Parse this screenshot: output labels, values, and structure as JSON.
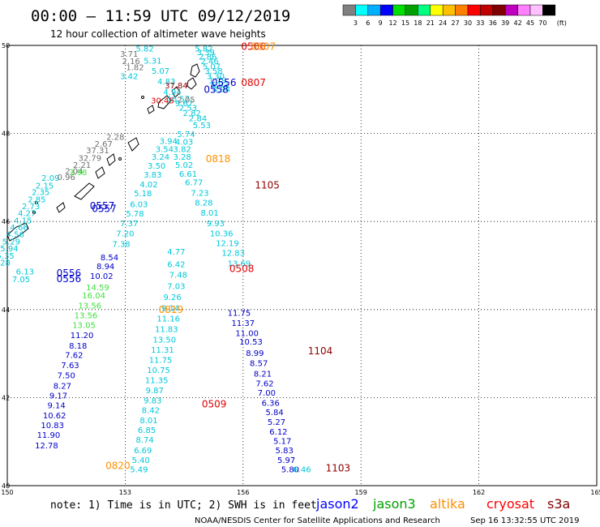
{
  "header": {
    "title": "00:00 – 11:59 UTC 09/12/2019",
    "subtitle": "12 hour collection of altimeter wave heights"
  },
  "legend": {
    "colors": [
      "#808080",
      "#00ffff",
      "#00b0ff",
      "#0000ff",
      "#00e000",
      "#00a000",
      "#00ff80",
      "#ffff00",
      "#ffc000",
      "#ff8000",
      "#ff0000",
      "#c00000",
      "#800000",
      "#c000c0",
      "#ff80ff",
      "#ffc0ff",
      "#000000"
    ],
    "labels": [
      "3",
      "6",
      "9",
      "12",
      "15",
      "18",
      "21",
      "24",
      "27",
      "30",
      "33",
      "36",
      "39",
      "42",
      "45",
      "70"
    ],
    "unit": "(ft)"
  },
  "axes": {
    "y_ticks": [
      "50",
      "48",
      "46",
      "44",
      "42",
      "40"
    ],
    "x_ticks": [
      "150",
      "153",
      "156",
      "159",
      "162",
      "165"
    ]
  },
  "footer": {
    "note": "note:  1) Time is in UTC;  2) SWH is in feet",
    "satellites": [
      {
        "name": "jason2",
        "color": "#0000ff"
      },
      {
        "name": "jason3",
        "color": "#00a000"
      },
      {
        "name": "altika",
        "color": "#ff9000"
      },
      {
        "name": "cryosat",
        "color": "#ff0000"
      },
      {
        "name": "s3a",
        "color": "#800000"
      }
    ],
    "credit": "NOAA/NESDIS Center for Satellite Applications and Research",
    "timestamp": "Sep 16 13:32:55 UTC 2019"
  },
  "colors": {
    "cyan": "#00c8d8",
    "blue": "#0000c8",
    "green": "#40e040",
    "gray": "#707070",
    "orange": "#ff9000",
    "red": "#e00000",
    "darkred": "#900000",
    "darkgreen": "#006000"
  },
  "tracks": {
    "t1_upper": {
      "lat": [
        49.86,
        49.59,
        49.36,
        49.12,
        48.88,
        48.72,
        48.62,
        48.52,
        48.4,
        48.28,
        48.12
      ],
      "lon": [
        153.5,
        153.7,
        153.9,
        154.05,
        154.2,
        154.35,
        154.5,
        154.6,
        154.7,
        154.85,
        154.95
      ],
      "color": "cyan",
      "values": [
        "5.82",
        "5.31",
        "5.07",
        "4.83",
        "4.94",
        "16.57",
        "9.67",
        "2.53",
        "2.82",
        "2.84",
        "5.53"
      ]
    },
    "t1_upper_b": {
      "lat": [
        49.86,
        49.78,
        49.68,
        49.58,
        49.46,
        49.36,
        49.24,
        49.14,
        49.04,
        48.94
      ],
      "lon": [
        155.0,
        155.05,
        155.1,
        155.15,
        155.2,
        155.25,
        155.3,
        155.35,
        155.4,
        155.45
      ],
      "color": "cyan",
      "values": [
        "5.82",
        "3.39",
        "2.86",
        "2.46",
        "5.07",
        "3.58",
        "3.30",
        "1.79",
        "6.92",
        "4.94"
      ]
    },
    "t1_upper_gray": {
      "lat": [
        49.74,
        49.58,
        49.44
      ],
      "lon": [
        153.1,
        153.15,
        153.25
      ],
      "color": "gray",
      "values": [
        "3.71",
        "2.16",
        "1.82"
      ]
    },
    "t1_mid": {
      "lat": [
        47.92,
        47.74,
        47.58,
        47.4,
        47.22,
        47.02,
        46.82,
        46.58,
        46.36,
        46.13,
        45.89,
        45.66,
        45.44,
        45.22,
        44.98
      ],
      "lon": [
        154.55,
        154.5,
        154.45,
        154.45,
        154.5,
        154.6,
        154.75,
        154.9,
        155.0,
        155.15,
        155.3,
        155.45,
        155.6,
        155.75,
        155.9
      ],
      "color": "cyan",
      "values": [
        "5.74",
        "4.03",
        "3.82",
        "3.28",
        "5.02",
        "6.61",
        "6.77",
        "7.23",
        "8.28",
        "8.01",
        "9.93",
        "10.36",
        "12.19",
        "12.83",
        "13.69"
      ]
    },
    "t1_lower": {
      "lat": [
        43.86,
        43.63,
        43.4,
        43.2,
        42.95,
        42.72,
        42.48,
        42.26,
        42.04,
        41.81,
        41.6,
        41.38,
        41.16,
        40.95,
        40.74,
        40.52,
        40.3
      ],
      "lon": [
        155.9,
        156.0,
        156.1,
        156.2,
        156.3,
        156.4,
        156.5,
        156.55,
        156.6,
        156.7,
        156.8,
        156.85,
        156.9,
        157.0,
        157.05,
        157.1,
        157.2
      ],
      "color": "blue",
      "values": [
        "11.75",
        "11.37",
        "11.00",
        "10.53",
        "8.99",
        "8.57",
        "8.21",
        "7.62",
        "7.00",
        "6.36",
        "5.84",
        "5.27",
        "6.12",
        "5.17",
        "5.83",
        "5.97",
        "5.80"
      ]
    },
    "t2_a": {
      "lat": [
        47.76,
        47.58,
        47.4,
        47.2,
        47.0,
        46.78,
        46.57,
        46.33,
        46.11,
        45.89,
        45.66,
        45.42
      ],
      "lon": [
        154.1,
        154.0,
        153.9,
        153.8,
        153.7,
        153.6,
        153.45,
        153.35,
        153.25,
        153.1,
        153.0,
        152.9
      ],
      "color": "cyan",
      "values": [
        "3.94",
        "3.54",
        "3.24",
        "3.50",
        "3.83",
        "4.02",
        "5.18",
        "6.03",
        "5.78",
        "7.37",
        "7.20",
        "7.38"
      ]
    },
    "t2_b": {
      "lat": [
        45.12,
        44.92,
        44.7,
        44.44,
        44.25,
        44.02,
        43.8,
        43.58,
        43.35,
        43.11,
        42.9,
        42.67,
        42.44,
        42.2,
        41.98,
        41.76,
        41.53,
        41.31,
        41.09,
        40.85,
        40.64,
        40.42
      ],
      "lon": [
        152.6,
        152.5,
        152.4,
        152.3,
        152.2,
        152.1,
        152.0,
        151.95,
        151.9,
        151.8,
        151.7,
        151.6,
        151.5,
        151.4,
        151.3,
        151.25,
        151.2,
        151.15,
        151.05,
        151.0,
        150.95,
        150.9
      ],
      "color": "blue",
      "values": [
        "8.54",
        "8.94",
        "10.02",
        "14.59",
        "16.04",
        "13.56",
        "13.56",
        "13.05",
        "11.20",
        "8.18",
        "7.62",
        "7.63",
        "7.50",
        "8.27",
        "9.17",
        "9.14",
        "10.62",
        "10.83",
        "11.90",
        "12.78",
        "",
        ""
      ]
    },
    "t3": {
      "lat": [
        45.25,
        44.96,
        44.72,
        44.47,
        44.22,
        43.97,
        43.73,
        43.49,
        43.25,
        43.02,
        42.79,
        42.56,
        42.33,
        42.1,
        41.87,
        41.65,
        41.42,
        41.2,
        40.98,
        40.74,
        40.52,
        40.3
      ],
      "lon": [
        154.3,
        154.3,
        154.35,
        154.3,
        154.2,
        154.15,
        154.1,
        154.05,
        154.0,
        153.95,
        153.9,
        153.85,
        153.8,
        153.75,
        153.7,
        153.65,
        153.6,
        153.55,
        153.5,
        153.45,
        153.4,
        153.35
      ],
      "color": "cyan",
      "values": [
        "4.77",
        "6.42",
        "7.48",
        "7.03",
        "9.26",
        "9.14",
        "11.16",
        "11.83",
        "13.50",
        "11.31",
        "11.75",
        "10.75",
        "11.35",
        "9.87",
        "9.83",
        "8.42",
        "8.01",
        "6.85",
        "8.74",
        "6.69",
        "5.40",
        "5.49"
      ]
    },
    "t4": {
      "lat": [
        46.92,
        46.75,
        46.6,
        46.44,
        46.28,
        46.12,
        45.96,
        45.8,
        45.64,
        45.48,
        45.32,
        45.16,
        45.0
      ],
      "lon": [
        151.1,
        150.95,
        150.85,
        150.75,
        150.6,
        150.5,
        150.4,
        150.3,
        150.2,
        150.1,
        150.05,
        149.95,
        149.85
      ],
      "color": "cyan",
      "values": [
        "2.09",
        "2.15",
        "2.35",
        "2.85",
        "2.73",
        "4.27",
        "4.15",
        "4.66",
        "4.56",
        "5.29",
        "5.94",
        "5.35",
        "6.28"
      ]
    },
    "t4_up": {
      "lat": [
        47.85,
        47.7,
        47.55,
        47.38,
        47.22,
        47.08,
        46.94
      ],
      "lon": [
        152.75,
        152.45,
        152.3,
        152.1,
        151.9,
        151.7,
        151.5
      ],
      "color": "gray",
      "values": [
        "2.28",
        "2.67",
        "37.31",
        "32.79",
        "2.21",
        "2.04",
        "0.96"
      ]
    }
  },
  "passes": [
    {
      "label": "0506",
      "lat": 49.9,
      "lon": 155.95,
      "color": "red"
    },
    {
      "label": "0807",
      "lat": 49.9,
      "lon": 156.2,
      "color": "orange"
    },
    {
      "label": "0556",
      "lat": 49.08,
      "lon": 155.2,
      "color": "blue"
    },
    {
      "label": "0807",
      "lat": 49.08,
      "lon": 155.95,
      "color": "red"
    },
    {
      "label": "0558",
      "lat": 48.92,
      "lon": 155.0,
      "color": "blue"
    },
    {
      "label": "0818",
      "lat": 47.35,
      "lon": 155.05,
      "color": "orange"
    },
    {
      "label": "1105",
      "lat": 46.75,
      "lon": 156.3,
      "color": "darkred"
    },
    {
      "label": "0557",
      "lat": 46.28,
      "lon": 152.1,
      "color": "blue"
    },
    {
      "label": "0557",
      "lat": 46.22,
      "lon": 152.15,
      "color": "blue"
    },
    {
      "label": "0508",
      "lat": 44.85,
      "lon": 155.65,
      "color": "red"
    },
    {
      "label": "0556",
      "lat": 44.75,
      "lon": 151.25,
      "color": "blue"
    },
    {
      "label": "0556",
      "lat": 44.62,
      "lon": 151.25,
      "color": "blue"
    },
    {
      "label": "0819",
      "lat": 43.92,
      "lon": 153.85,
      "color": "orange"
    },
    {
      "label": "1104",
      "lat": 42.98,
      "lon": 157.65,
      "color": "darkred"
    },
    {
      "label": "0509",
      "lat": 41.78,
      "lon": 154.95,
      "color": "red"
    },
    {
      "label": "0820",
      "lat": 40.38,
      "lon": 152.5,
      "color": "orange"
    },
    {
      "label": "1103",
      "lat": 40.32,
      "lon": 158.1,
      "color": "darkred"
    }
  ],
  "extra_values": [
    {
      "text": "37.84",
      "lat": 49.02,
      "lon": 154.3,
      "color": "darkred"
    },
    {
      "text": "30.45",
      "lat": 48.68,
      "lon": 153.95,
      "color": "red"
    },
    {
      "text": "2.05",
      "lat": 48.7,
      "lon": 154.55,
      "color": "gray"
    },
    {
      "text": "3.42",
      "lat": 49.24,
      "lon": 153.1,
      "color": "cyan"
    },
    {
      "text": "7.05",
      "lat": 44.62,
      "lon": 150.35,
      "color": "cyan"
    },
    {
      "text": "6.13",
      "lat": 44.8,
      "lon": 150.45,
      "color": "cyan"
    },
    {
      "text": "6.46",
      "lat": 40.3,
      "lon": 157.5,
      "color": "cyan"
    },
    {
      "text": "3.98",
      "lat": 47.05,
      "lon": 151.8,
      "color": "green"
    }
  ]
}
